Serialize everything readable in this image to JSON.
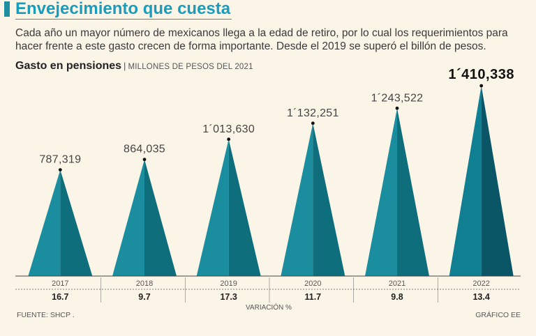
{
  "header": {
    "title": "Envejecimiento que cuesta",
    "subtitle": "Cada año un mayor número de mexicanos llega a la edad de retiro, por lo cual los requerimientos para hacer frente a este gasto crecen de forma importante. Desde el 2019 se superó el billón de pesos."
  },
  "chart_head": {
    "title": "Gasto en pensiones",
    "separator": "|",
    "unit": "MILLONES DE PESOS DEL 2021"
  },
  "chart_data": {
    "type": "bar",
    "shape": "triangle",
    "title": "Gasto en pensiones",
    "ylabel": "",
    "xlabel": "",
    "categories": [
      "2017",
      "2018",
      "2019",
      "2020",
      "2021",
      "2022"
    ],
    "values": [
      787319,
      864035,
      1013630,
      1132251,
      1243522,
      1410338
    ],
    "value_labels": [
      "787,319",
      "864,035",
      "1´013,630",
      "1´132,251",
      "1´243,522",
      "1´410,338"
    ],
    "variation_label": "VARIACIÓN %",
    "variation": [
      "16.7",
      "9.7",
      "17.3",
      "11.7",
      "9.8",
      "13.4"
    ],
    "highlight_index": 5,
    "colors": {
      "light": "#1a8e9e",
      "dark": "#0f6e7c",
      "highlight_light": "#117f92",
      "highlight_dark": "#0a5566"
    }
  },
  "footer": {
    "source": "FUENTE: SHCP .",
    "credit": "GRÁFICO EE"
  }
}
